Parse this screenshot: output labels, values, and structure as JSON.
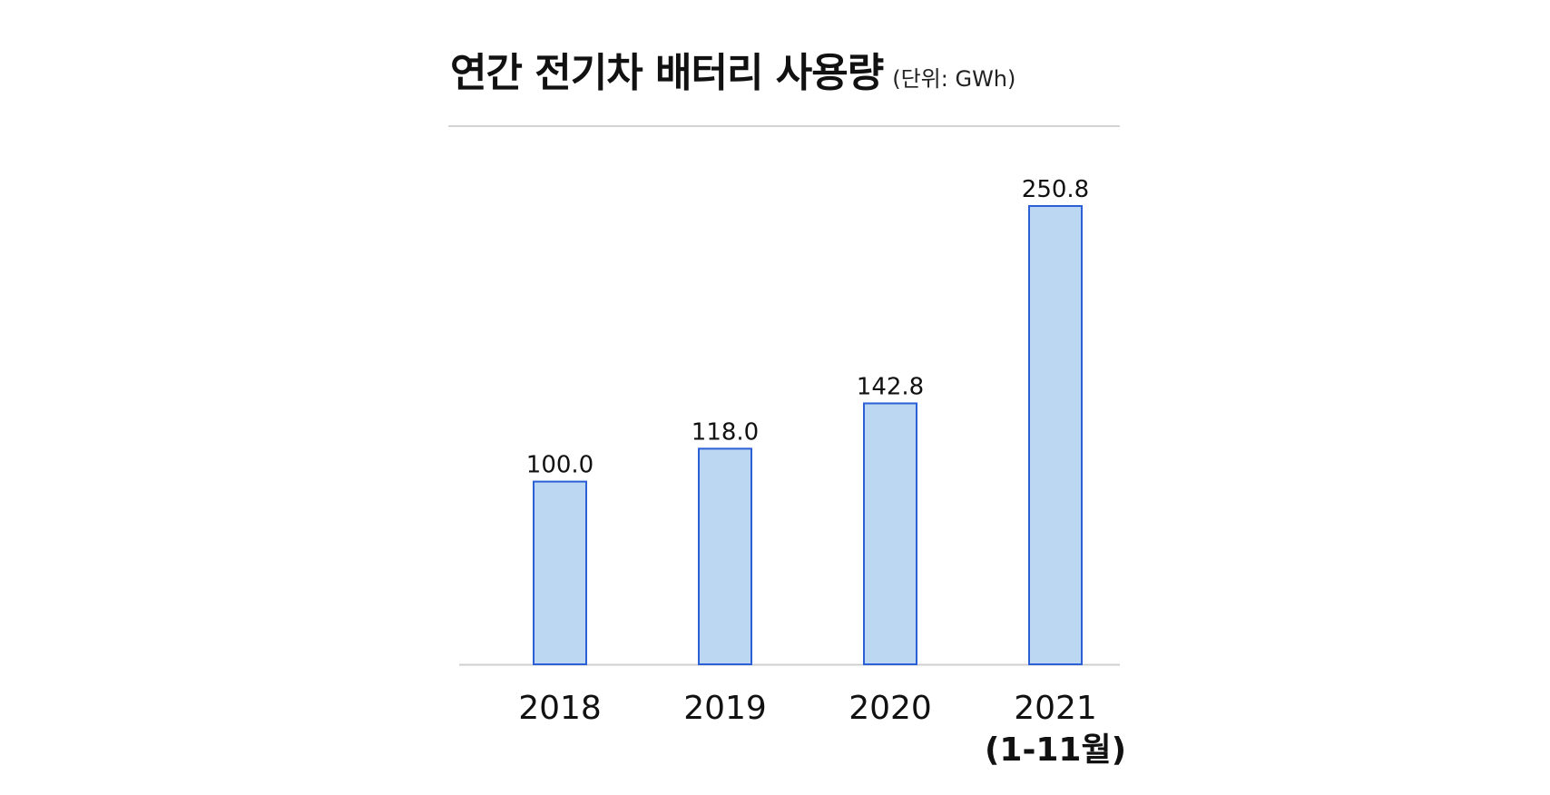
{
  "header": {
    "title": "연간 전기차 배터리 사용량",
    "unit": "(단위: GWh)"
  },
  "chart_data": {
    "type": "bar",
    "title": "연간 전기차 배터리 사용량",
    "subtitle": "(단위: GWh)",
    "categories": [
      "2018",
      "2019",
      "2020",
      "2021\n(1-11월)"
    ],
    "values": [
      100.0,
      118.0,
      142.8,
      250.8
    ],
    "value_labels": [
      "100.0",
      "118.0",
      "142.8",
      "250.8"
    ],
    "xlabel": "",
    "ylabel": "",
    "ylim": [
      0,
      250.8
    ],
    "grid": false,
    "legend": "none",
    "bar_fill": "#bbd7f2",
    "bar_stroke": "#2d5fd6",
    "baseline_color": "#cfcfcf"
  }
}
